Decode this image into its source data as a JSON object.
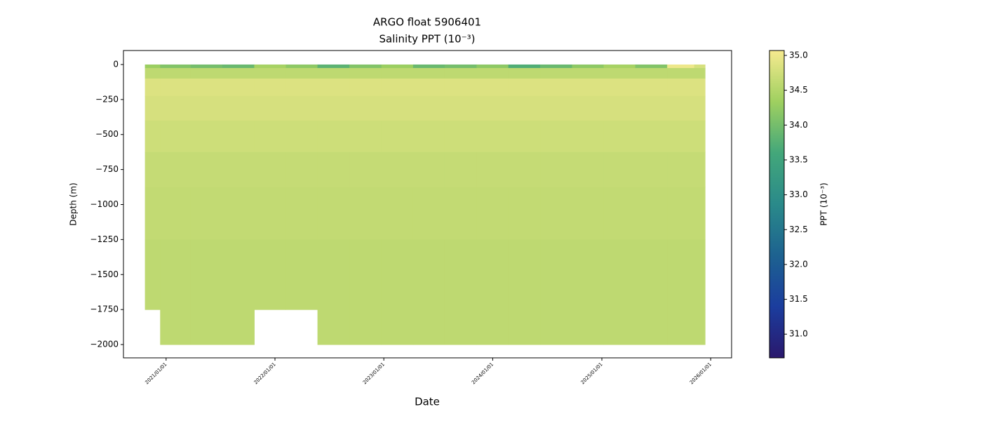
{
  "chart_data": {
    "type": "heatmap",
    "title": "ARGO float 5906401",
    "subtitle": "Salinity PPT (10⁻³)",
    "xlabel": "Date",
    "ylabel": "Depth (m)",
    "colorbar_label": "PPT (10⁻³)",
    "x": [
      "2020/10/22",
      "2021/02/01",
      "2021/05/15",
      "2021/09/01",
      "2021/12/15",
      "2022/04/01",
      "2022/07/15",
      "2022/11/01",
      "2023/02/15",
      "2023/06/01",
      "2023/09/15",
      "2024/01/01",
      "2024/04/15",
      "2024/08/01",
      "2024/11/15",
      "2025/03/01",
      "2025/06/15",
      "2025/10/01",
      "2025/12/13"
    ],
    "depths": [
      0,
      -50,
      -150,
      -300,
      -500,
      -750,
      -1000,
      -1500,
      -2000
    ],
    "values": [
      [
        34.3,
        34.6,
        34.85,
        34.8,
        34.72,
        34.66,
        34.63,
        34.6,
        null
      ],
      [
        34.1,
        34.6,
        34.85,
        34.8,
        34.72,
        34.66,
        34.63,
        34.6,
        34.6
      ],
      [
        34.0,
        34.6,
        34.85,
        34.8,
        34.72,
        34.66,
        34.63,
        34.6,
        34.6
      ],
      [
        33.9,
        34.6,
        34.85,
        34.8,
        34.72,
        34.66,
        34.63,
        34.6,
        34.6
      ],
      [
        34.4,
        34.6,
        34.85,
        34.8,
        34.72,
        34.66,
        34.63,
        34.6,
        null
      ],
      [
        34.2,
        34.6,
        34.85,
        34.8,
        34.72,
        34.66,
        34.63,
        34.6,
        null
      ],
      [
        33.8,
        34.6,
        34.85,
        34.8,
        34.72,
        34.66,
        34.63,
        34.6,
        34.6
      ],
      [
        34.1,
        34.6,
        34.85,
        34.8,
        34.72,
        34.66,
        34.63,
        34.6,
        34.6
      ],
      [
        34.3,
        34.6,
        34.85,
        34.8,
        34.72,
        34.66,
        34.63,
        34.6,
        34.6
      ],
      [
        33.9,
        34.6,
        34.85,
        34.8,
        34.72,
        34.66,
        34.63,
        34.6,
        34.6
      ],
      [
        34.0,
        34.6,
        34.85,
        34.8,
        34.72,
        34.66,
        34.63,
        34.6,
        34.6
      ],
      [
        34.2,
        34.6,
        34.85,
        34.8,
        34.72,
        34.66,
        34.63,
        34.6,
        34.6
      ],
      [
        33.7,
        34.6,
        34.85,
        34.8,
        34.72,
        34.66,
        34.63,
        34.6,
        34.6
      ],
      [
        33.9,
        34.6,
        34.85,
        34.8,
        34.72,
        34.66,
        34.63,
        34.6,
        34.6
      ],
      [
        34.2,
        34.6,
        34.85,
        34.8,
        34.72,
        34.66,
        34.63,
        34.6,
        34.6
      ],
      [
        34.4,
        34.6,
        34.85,
        34.8,
        34.72,
        34.66,
        34.63,
        34.6,
        34.6
      ],
      [
        34.1,
        34.6,
        34.85,
        34.8,
        34.72,
        34.66,
        34.63,
        34.6,
        34.6
      ],
      [
        35.0,
        34.6,
        34.85,
        34.8,
        34.72,
        34.66,
        34.63,
        34.6,
        34.6
      ],
      [
        34.8,
        34.6,
        34.85,
        34.8,
        34.72,
        34.66,
        34.63,
        34.6,
        34.6
      ]
    ],
    "xlim": [
      "2020/08/11",
      "2026/03/12"
    ],
    "xticks": [
      "2021/01/01",
      "2022/01/01",
      "2023/01/01",
      "2024/01/01",
      "2025/01/01",
      "2026/01/01"
    ],
    "ylim": [
      -2095,
      100
    ],
    "yticks": [
      0,
      {
        "value": -250,
        "label": "−250"
      },
      {
        "value": -500,
        "label": "−500"
      },
      {
        "value": -750,
        "label": "−750"
      },
      {
        "value": -1000,
        "label": "−1000"
      },
      {
        "value": -1250,
        "label": "−1250"
      },
      {
        "value": -1500,
        "label": "−1500"
      },
      {
        "value": -1750,
        "label": "−1750"
      },
      {
        "value": -2000,
        "label": "−2000"
      }
    ],
    "clim": [
      30.66,
      35.07
    ],
    "cticks": [
      {
        "value": 31,
        "label": "31.0"
      },
      31.5,
      {
        "value": 32,
        "label": "32.0"
      },
      32.5,
      {
        "value": 33,
        "label": "33.0"
      },
      33.5,
      {
        "value": 34,
        "label": "34.0"
      },
      34.5,
      {
        "value": 35,
        "label": "35.0"
      }
    ],
    "colormap": [
      "#2a186c",
      "#1b3d9e",
      "#1d6290",
      "#2a8a8a",
      "#43a77a",
      "#9fd060",
      "#f6ea8f"
    ]
  }
}
